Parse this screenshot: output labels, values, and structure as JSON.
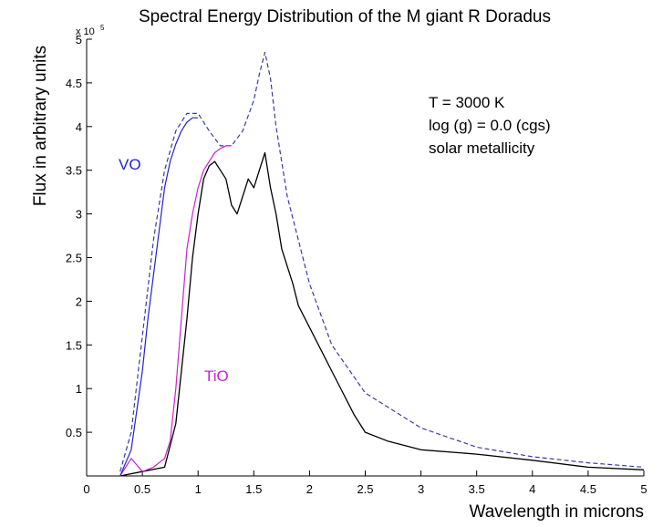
{
  "chart_data": {
    "type": "line",
    "title": "Spectral Energy Distribution of  the M giant R Doradus",
    "xlabel": "Wavelength in microns",
    "ylabel": "Flux in arbitrary units",
    "y_multiplier": "x 10",
    "y_multiplier_exp": "5",
    "xlim": [
      0,
      5
    ],
    "ylim": [
      0,
      5
    ],
    "x_ticks": [
      0.5,
      1,
      1.5,
      2,
      2.5,
      3,
      3.5,
      4,
      4.5,
      5
    ],
    "x_tick_labels": [
      "0.5",
      "1",
      "1.5",
      "2",
      "2.5",
      "3",
      "3.5",
      "4",
      "4.5",
      "5"
    ],
    "y_ticks": [
      0.5,
      1,
      1.5,
      2,
      2.5,
      3,
      3.5,
      4,
      4.5,
      5
    ],
    "y_tick_labels": [
      "0.5",
      "1",
      "1.5",
      "2",
      "2.5",
      "3",
      "3.5",
      "4",
      "4.5",
      "5"
    ],
    "origin_label": "0",
    "annotations": {
      "temperature": "T = 3000 K",
      "gravity": "log (g) = 0.0  (cgs)",
      "metallicity": "solar metallicity",
      "vo": "VO",
      "tio": "TiO"
    },
    "colors": {
      "observed": "#000000",
      "continuum": "#3a3aa8",
      "vo": "#2222cc",
      "tio": "#cc22cc",
      "axis": "#000000"
    },
    "series": [
      {
        "name": "continuum (blue dashed)",
        "x": [
          0.3,
          0.4,
          0.5,
          0.6,
          0.7,
          0.8,
          0.9,
          1.0,
          1.1,
          1.2,
          1.3,
          1.4,
          1.5,
          1.55,
          1.6,
          1.65,
          1.7,
          1.8,
          2.0,
          2.2,
          2.5,
          3.0,
          3.5,
          4.0,
          4.5,
          5.0
        ],
        "values": [
          0.05,
          0.5,
          1.6,
          2.7,
          3.5,
          3.95,
          4.15,
          4.15,
          3.95,
          3.78,
          3.78,
          3.95,
          4.3,
          4.6,
          4.85,
          4.55,
          4.0,
          3.2,
          2.2,
          1.5,
          0.95,
          0.55,
          0.33,
          0.22,
          0.15,
          0.1
        ]
      },
      {
        "name": "observed spectrum (black)",
        "x": [
          0.3,
          0.5,
          0.7,
          0.8,
          0.85,
          0.9,
          0.95,
          1.0,
          1.05,
          1.1,
          1.15,
          1.2,
          1.25,
          1.3,
          1.35,
          1.4,
          1.45,
          1.5,
          1.55,
          1.6,
          1.65,
          1.7,
          1.75,
          1.8,
          1.85,
          1.9,
          2.0,
          2.1,
          2.2,
          2.3,
          2.4,
          2.5,
          2.7,
          3.0,
          3.5,
          4.0,
          4.5,
          5.0
        ],
        "values": [
          0.0,
          0.05,
          0.1,
          0.6,
          1.2,
          1.8,
          2.5,
          3.0,
          3.4,
          3.55,
          3.6,
          3.5,
          3.4,
          3.1,
          3.0,
          3.2,
          3.4,
          3.3,
          3.5,
          3.7,
          3.3,
          3.0,
          2.6,
          2.4,
          2.2,
          1.95,
          1.7,
          1.45,
          1.2,
          0.95,
          0.7,
          0.5,
          0.4,
          0.3,
          0.25,
          0.18,
          0.1,
          0.07
        ]
      },
      {
        "name": "TiO band model (magenta)",
        "x": [
          0.3,
          0.4,
          0.5,
          0.6,
          0.7,
          0.75,
          0.8,
          0.85,
          0.9,
          0.95,
          1.0,
          1.05,
          1.1,
          1.15,
          1.2,
          1.25,
          1.3
        ],
        "values": [
          0.0,
          0.2,
          0.05,
          0.1,
          0.2,
          0.4,
          1.0,
          1.8,
          2.6,
          3.0,
          3.3,
          3.5,
          3.6,
          3.7,
          3.75,
          3.78,
          3.78
        ]
      },
      {
        "name": "VO band model (blue)",
        "x": [
          0.3,
          0.4,
          0.5,
          0.55,
          0.6,
          0.65,
          0.7,
          0.75,
          0.8,
          0.85,
          0.9,
          0.95,
          1.0
        ],
        "values": [
          0.0,
          0.3,
          1.2,
          1.8,
          2.3,
          2.8,
          3.3,
          3.6,
          3.8,
          3.95,
          4.05,
          4.1,
          4.1
        ]
      }
    ]
  }
}
